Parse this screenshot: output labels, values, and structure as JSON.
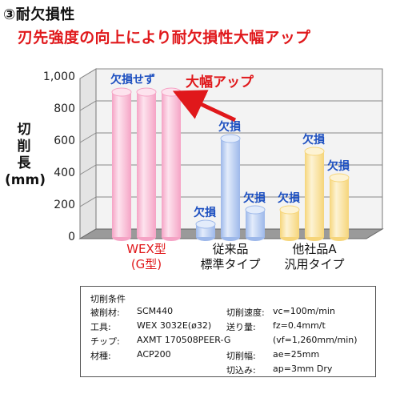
{
  "heading": "③耐欠損性",
  "subheading": "刃先強度の向上により耐欠損性大幅アップ",
  "chart_data": {
    "type": "bar",
    "ylabel": "切\n削\n長\n(mm)",
    "ylim": [
      0,
      1000
    ],
    "yticks": [
      "0",
      "200",
      "400",
      "600",
      "800",
      "1,000"
    ],
    "categories": [
      "WEX型\n(G型)",
      "従来品\n標準タイプ",
      "他社品A\n汎用タイプ"
    ],
    "category_colors": [
      "#e0181b",
      "#111111",
      "#111111"
    ],
    "bars": [
      {
        "group": 0,
        "value": 915,
        "color": "#f5a3c5",
        "light": "#fde3ee",
        "label": ""
      },
      {
        "group": 0,
        "value": 915,
        "color": "#f5a3c5",
        "light": "#fde3ee",
        "label": ""
      },
      {
        "group": 0,
        "value": 915,
        "color": "#f5a3c5",
        "light": "#fde3ee",
        "label": ""
      },
      {
        "group": 1,
        "value": 90,
        "color": "#9db8ea",
        "light": "#e3ecfb",
        "label": "欠損"
      },
      {
        "group": 1,
        "value": 625,
        "color": "#9db8ea",
        "light": "#e3ecfb",
        "label": "欠損"
      },
      {
        "group": 1,
        "value": 180,
        "color": "#9db8ea",
        "light": "#e3ecfb",
        "label": "欠損"
      },
      {
        "group": 2,
        "value": 180,
        "color": "#f6d57a",
        "light": "#fdf3d4",
        "label": "欠損"
      },
      {
        "group": 2,
        "value": 545,
        "color": "#f6d57a",
        "light": "#fdf3d4",
        "label": "欠損"
      },
      {
        "group": 2,
        "value": 380,
        "color": "#f6d57a",
        "light": "#fdf3d4",
        "label": "欠損"
      }
    ],
    "group_label": "欠損せず",
    "callout": "大幅アップ",
    "grid": true
  },
  "conditions": {
    "title": "切削条件",
    "left": [
      {
        "label": "被削材:",
        "value": "SCM440"
      },
      {
        "label": "工具:",
        "value": "WEX 3032E(ø32)"
      },
      {
        "label": "チップ:",
        "value": "AXMT 170508PEER-G"
      },
      {
        "label": "材種:",
        "value": "ACP200"
      }
    ],
    "right": [
      {
        "label": "切削速度:",
        "value": "vc=100m/min"
      },
      {
        "label": "送り量:",
        "value": "fz=0.4mm/t"
      },
      {
        "label": "",
        "value": "(vf=1,260mm/min)"
      },
      {
        "label": "切削幅:",
        "value": "ae=25mm"
      },
      {
        "label": "切込み:",
        "value": "ap=3mm Dry"
      }
    ]
  }
}
